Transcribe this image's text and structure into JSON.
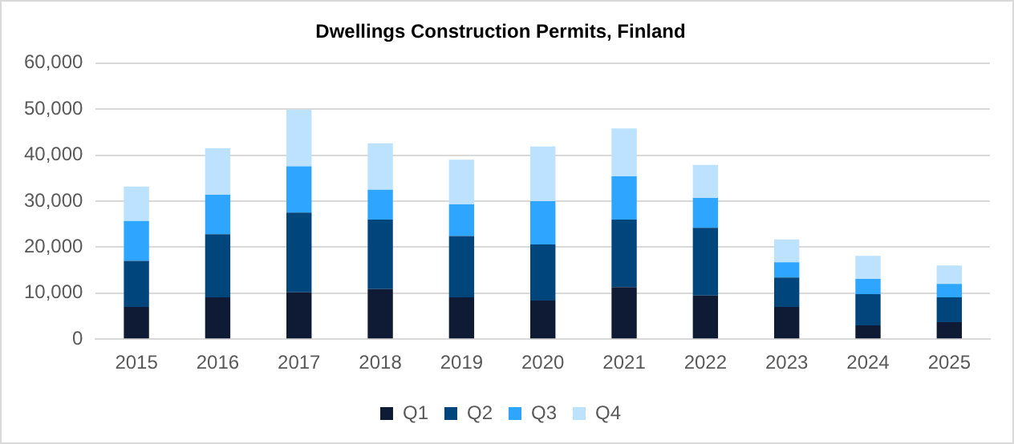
{
  "chart_data": {
    "type": "bar",
    "title": "Dwellings Construction Permits, Finland",
    "stacked": true,
    "grid": "y",
    "legend": "bottom",
    "categories": [
      "2015",
      "2016",
      "2017",
      "2018",
      "2019",
      "2020",
      "2021",
      "2022",
      "2023",
      "2024",
      "2025"
    ],
    "ylim": [
      0,
      60000
    ],
    "yticks": [
      {
        "value": 0,
        "label": "0"
      },
      {
        "value": 10000,
        "label": "10,000"
      },
      {
        "value": 20000,
        "label": "20,000"
      },
      {
        "value": 30000,
        "label": "30,000"
      },
      {
        "value": 40000,
        "label": "40,000"
      },
      {
        "value": 50000,
        "label": "50,000"
      },
      {
        "value": 60000,
        "label": "60,000"
      }
    ],
    "series": [
      {
        "name": "Q1",
        "color": "#0f1b35",
        "values": [
          7000,
          9100,
          10200,
          10900,
          9100,
          8400,
          11300,
          9500,
          7000,
          3000,
          3700
        ]
      },
      {
        "name": "Q2",
        "color": "#00457c",
        "values": [
          10000,
          13700,
          17300,
          15100,
          13300,
          12200,
          14700,
          14700,
          6400,
          6800,
          5400
        ]
      },
      {
        "name": "Q3",
        "color": "#2ea6ff",
        "values": [
          8700,
          8600,
          10100,
          6500,
          6900,
          9400,
          9400,
          6500,
          3300,
          3300,
          2900
        ]
      },
      {
        "name": "Q4",
        "color": "#bde2ff",
        "values": [
          7500,
          10100,
          12300,
          10100,
          9700,
          11900,
          10400,
          7200,
          5000,
          5000,
          4000
        ]
      }
    ]
  }
}
